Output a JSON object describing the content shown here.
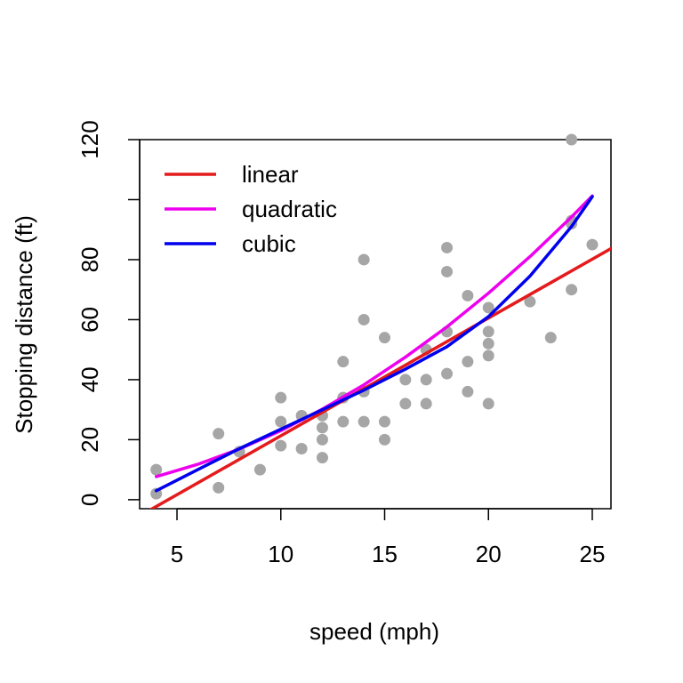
{
  "chart_data": {
    "type": "scatter",
    "title": "",
    "xlabel": "speed (mph)",
    "ylabel": "Stopping distance (ft)",
    "xlim": [
      3.2,
      25.9
    ],
    "ylim": [
      -3,
      120
    ],
    "xticks": [
      5,
      10,
      15,
      20,
      25
    ],
    "yticks": [
      0,
      20,
      40,
      60,
      80,
      100,
      120
    ],
    "ytick_labels": [
      "0",
      "20",
      "40",
      "60",
      "80",
      "",
      "120"
    ],
    "grid": false,
    "legend_position": "top-left",
    "point_color": "#a6a6a6",
    "points": [
      [
        4,
        2
      ],
      [
        4,
        10
      ],
      [
        7,
        4
      ],
      [
        7,
        22
      ],
      [
        8,
        16
      ],
      [
        9,
        10
      ],
      [
        10,
        18
      ],
      [
        10,
        26
      ],
      [
        10,
        34
      ],
      [
        11,
        17
      ],
      [
        11,
        28
      ],
      [
        12,
        14
      ],
      [
        12,
        20
      ],
      [
        12,
        24
      ],
      [
        12,
        28
      ],
      [
        13,
        26
      ],
      [
        13,
        34
      ],
      [
        13,
        34
      ],
      [
        13,
        46
      ],
      [
        14,
        26
      ],
      [
        14,
        36
      ],
      [
        14,
        60
      ],
      [
        14,
        80
      ],
      [
        15,
        20
      ],
      [
        15,
        26
      ],
      [
        15,
        54
      ],
      [
        16,
        32
      ],
      [
        16,
        40
      ],
      [
        17,
        32
      ],
      [
        17,
        40
      ],
      [
        17,
        50
      ],
      [
        18,
        42
      ],
      [
        18,
        56
      ],
      [
        18,
        76
      ],
      [
        18,
        84
      ],
      [
        19,
        36
      ],
      [
        19,
        46
      ],
      [
        19,
        68
      ],
      [
        20,
        32
      ],
      [
        20,
        48
      ],
      [
        20,
        52
      ],
      [
        20,
        56
      ],
      [
        20,
        64
      ],
      [
        22,
        66
      ],
      [
        23,
        54
      ],
      [
        24,
        70
      ],
      [
        24,
        92
      ],
      [
        24,
        93
      ],
      [
        24,
        120
      ],
      [
        25,
        85
      ]
    ],
    "series": [
      {
        "name": "linear",
        "color": "#e41a1c",
        "type": "line",
        "x": [
          3.2,
          25.9
        ],
        "y": [
          -5.4,
          83.7
        ]
      },
      {
        "name": "quadratic",
        "color": "#ee00ee",
        "type": "line",
        "x": [
          4,
          6,
          8,
          10,
          12,
          14,
          16,
          18,
          20,
          22,
          24,
          25
        ],
        "y": [
          7.7,
          11.8,
          16.9,
          23.0,
          30.2,
          38.3,
          47.5,
          57.6,
          68.8,
          81.0,
          94.2,
          101.2
        ]
      },
      {
        "name": "cubic",
        "color": "#0000ee",
        "type": "line",
        "x": [
          4,
          6,
          8,
          10,
          12,
          14,
          16,
          18,
          20,
          22,
          24,
          25
        ],
        "y": [
          3.0,
          10.0,
          17.0,
          23.5,
          30.0,
          36.5,
          43.5,
          51.0,
          61.0,
          74.5,
          91.0,
          101.0
        ]
      }
    ]
  }
}
